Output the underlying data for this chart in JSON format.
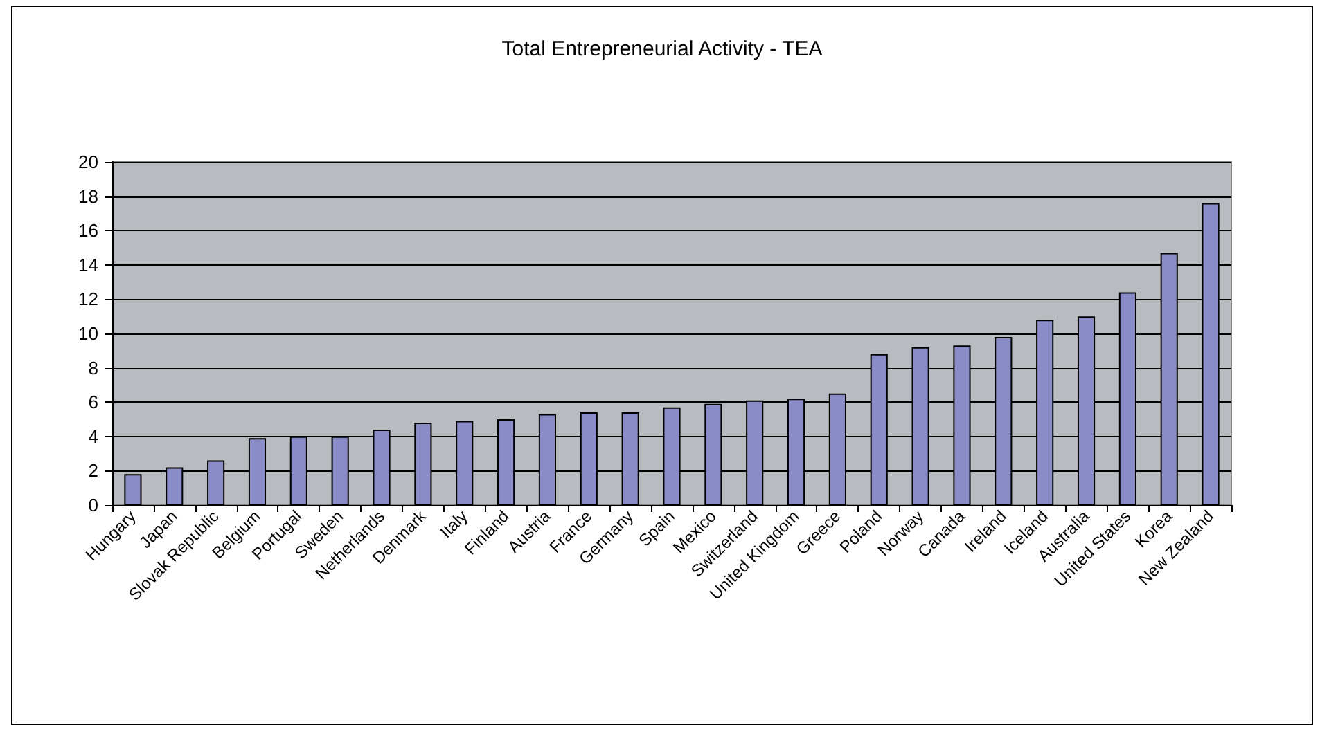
{
  "chart_data": {
    "type": "bar",
    "title": "Total Entrepreneurial Activity - TEA",
    "categories": [
      "Hungary",
      "Japan",
      "Slovak Republic",
      "Belgium",
      "Portugal",
      "Sweden",
      "Netherlands",
      "Denmark",
      "Italy",
      "Finland",
      "Austria",
      "France",
      "Germany",
      "Spain",
      "Mexico",
      "Switzerland",
      "United Kingdom",
      "Greece",
      "Poland",
      "Norway",
      "Canada",
      "Ireland",
      "Iceland",
      "Australia",
      "United States",
      "Korea",
      "New Zealand"
    ],
    "values": [
      1.8,
      2.2,
      2.6,
      3.9,
      4.0,
      4.0,
      4.4,
      4.8,
      4.9,
      5.0,
      5.3,
      5.4,
      5.4,
      5.7,
      5.9,
      6.1,
      6.2,
      6.5,
      8.8,
      9.2,
      9.3,
      9.8,
      10.8,
      11.0,
      12.4,
      14.7,
      17.6
    ],
    "color": "#8a8cc8",
    "ylim": [
      0,
      20
    ],
    "yticks": [
      0,
      2,
      4,
      6,
      8,
      10,
      12,
      14,
      16,
      18,
      20
    ],
    "grid": "y"
  }
}
